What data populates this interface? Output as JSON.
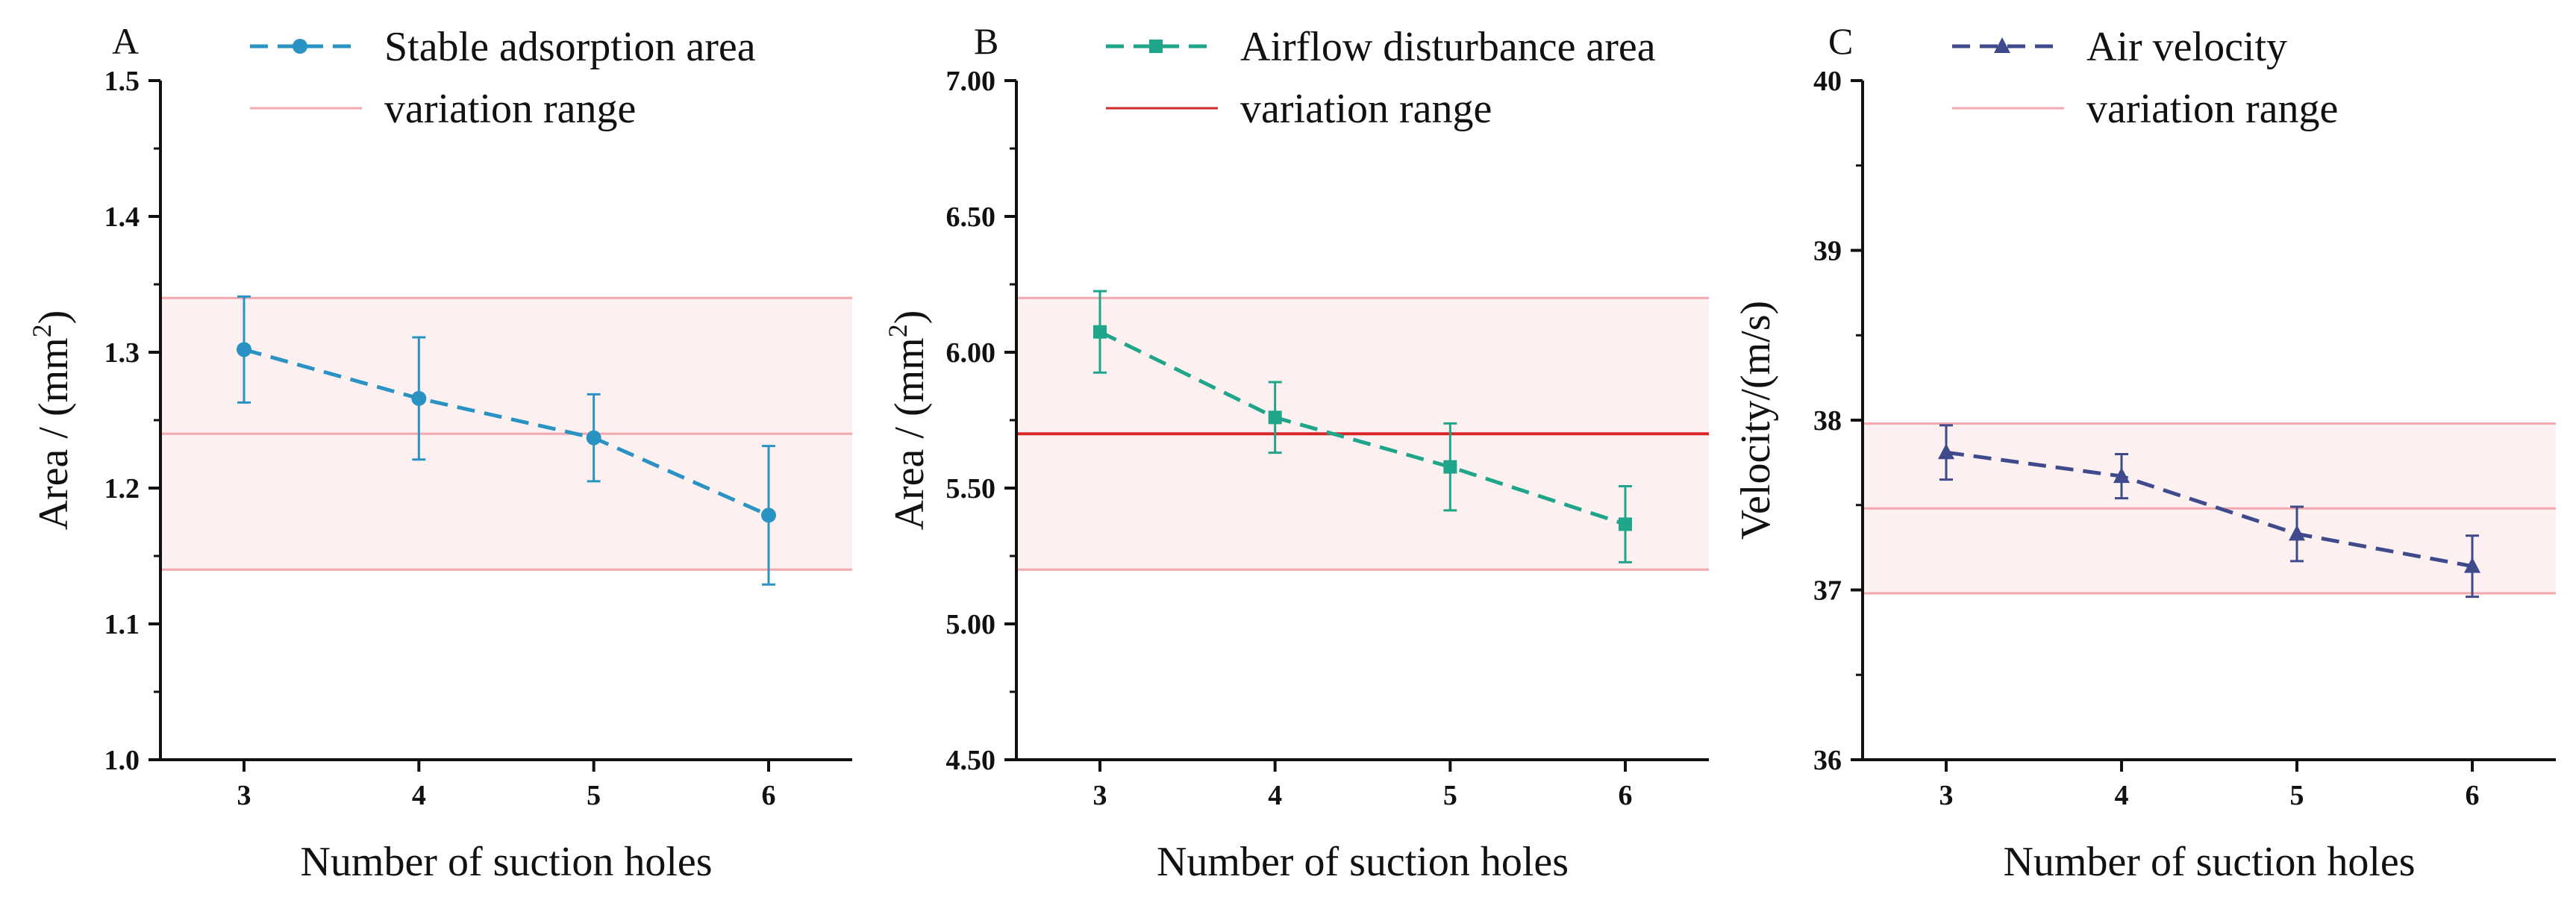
{
  "chart_data": [
    {
      "type": "line",
      "panel": "A",
      "x": [
        3,
        4,
        5,
        6
      ],
      "xticks": [
        "3",
        "4",
        "5",
        "6"
      ],
      "xlabel": "Number of suction holes",
      "ylabel": "Area / (mm",
      "ylabel_sup": "2",
      "ylabel_close": ")",
      "ylim": [
        1.0,
        1.5
      ],
      "yticks": [
        1.0,
        1.1,
        1.2,
        1.3,
        1.4,
        1.5
      ],
      "ytick_labels": [
        "1.0",
        "1.1",
        "1.2",
        "1.3",
        "1.4",
        "1.5"
      ],
      "series": [
        {
          "name": "Stable adsorption area",
          "values": [
            1.302,
            1.266,
            1.237,
            1.18
          ],
          "errors": [
            0.039,
            0.045,
            0.032,
            0.051
          ],
          "color": "#2A93C4",
          "marker": "circle"
        }
      ],
      "band": {
        "name": "variation range",
        "low": 1.14,
        "high": 1.34,
        "mid": 1.24,
        "fill": "#FDF0F1",
        "line": "#F4A7AD",
        "mid_line": "#F4A7AD"
      }
    },
    {
      "type": "line",
      "panel": "B",
      "x": [
        3,
        4,
        5,
        6
      ],
      "xticks": [
        "3",
        "4",
        "5",
        "6"
      ],
      "xlabel": "Number of suction holes",
      "ylabel": "Area / (mm",
      "ylabel_sup": "2",
      "ylabel_close": ")",
      "ylim": [
        4.5,
        7.0
      ],
      "yticks": [
        4.5,
        5.0,
        5.5,
        6.0,
        6.5,
        7.0
      ],
      "ytick_labels": [
        "4.50",
        "5.00",
        "5.50",
        "6.00",
        "6.50",
        "7.00"
      ],
      "series": [
        {
          "name": "Airflow disturbance area",
          "values": [
            6.075,
            5.76,
            5.578,
            5.367
          ],
          "errors": [
            0.15,
            0.13,
            0.16,
            0.14
          ],
          "color": "#1FA58A",
          "marker": "square"
        }
      ],
      "band": {
        "name": "variation range",
        "low": 5.2,
        "high": 6.2,
        "mid": 5.7,
        "fill": "#FDF0F1",
        "line": "#F4A7AD",
        "mid_line": "#D62728"
      }
    },
    {
      "type": "line",
      "panel": "C",
      "x": [
        3,
        4,
        5,
        6
      ],
      "xticks": [
        "3",
        "4",
        "5",
        "6"
      ],
      "xlabel": "Number of suction holes",
      "ylabel": "Velocity/(m/s)",
      "ylabel_sup": "",
      "ylabel_close": "",
      "ylim": [
        36,
        40
      ],
      "yticks": [
        36,
        37,
        38,
        39,
        40
      ],
      "ytick_labels": [
        "36",
        "37",
        "38",
        "39",
        "40"
      ],
      "series": [
        {
          "name": "Air velocity",
          "values": [
            37.81,
            37.67,
            37.33,
            37.14
          ],
          "errors": [
            0.16,
            0.13,
            0.16,
            0.18
          ],
          "color": "#3E4A8C",
          "marker": "triangle"
        }
      ],
      "band": {
        "name": "variation range",
        "low": 36.98,
        "high": 37.98,
        "mid": 37.48,
        "fill": "#FDF0F1",
        "line": "#F4A7AD",
        "mid_line": "#F4A7AD"
      }
    }
  ]
}
